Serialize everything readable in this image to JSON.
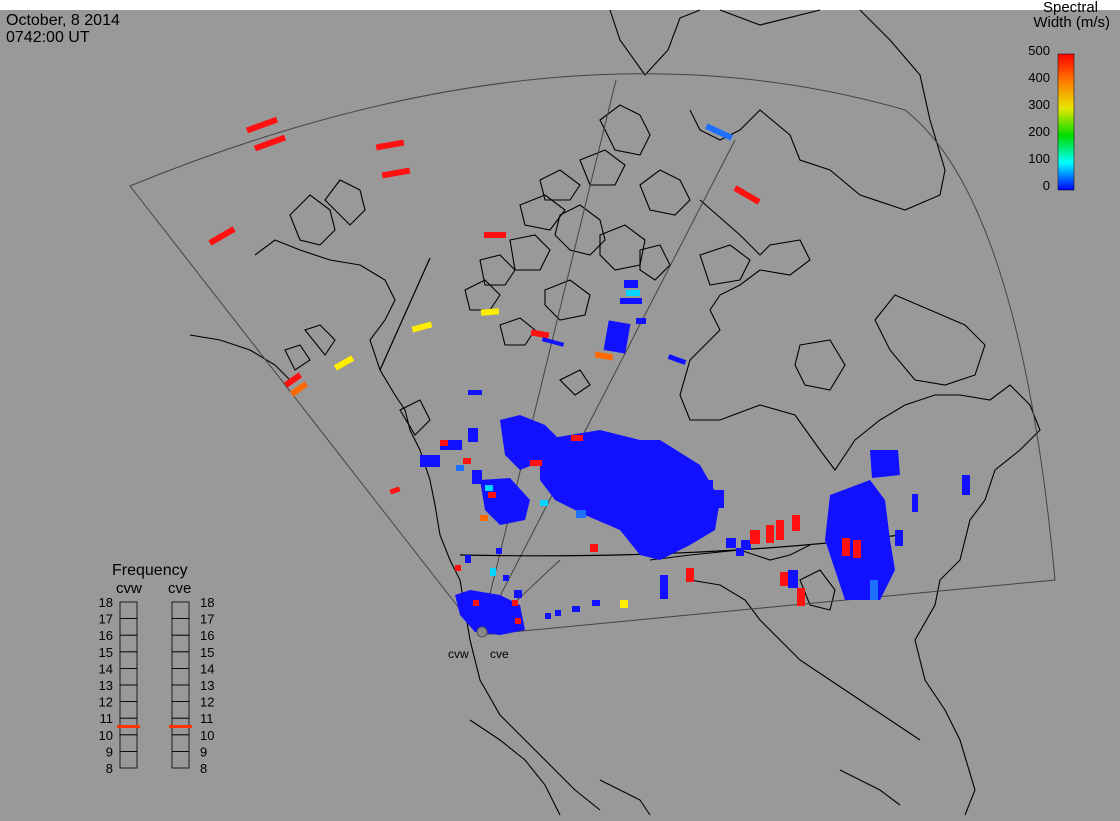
{
  "header": {
    "date": "October, 8 2014",
    "time": "0742:00 UT"
  },
  "colorbar": {
    "title_line1": "Spectral",
    "title_line2": "Width (m/s)",
    "ticks": [
      "500",
      "400",
      "300",
      "200",
      "100",
      "0"
    ]
  },
  "frequency": {
    "title": "Frequency",
    "left_label": "cvw",
    "right_label": "cve",
    "ticks": [
      "18",
      "17",
      "16",
      "15",
      "14",
      "13",
      "12",
      "11",
      "10",
      "9",
      "8"
    ],
    "cvw_value_mhz": 10.5,
    "cve_value_mhz": 10.5
  },
  "radars": [
    {
      "id": "cvw",
      "label": "cvw"
    },
    {
      "id": "cve",
      "label": "cve"
    }
  ],
  "colors": {
    "background": "#999999",
    "red": "#ff1111",
    "orange": "#ff6a00",
    "yellow": "#ffee00",
    "cyan": "#00d5ff",
    "light-blue": "#1f6fff",
    "blue": "#1111ff",
    "marker": "#ff3300"
  }
}
